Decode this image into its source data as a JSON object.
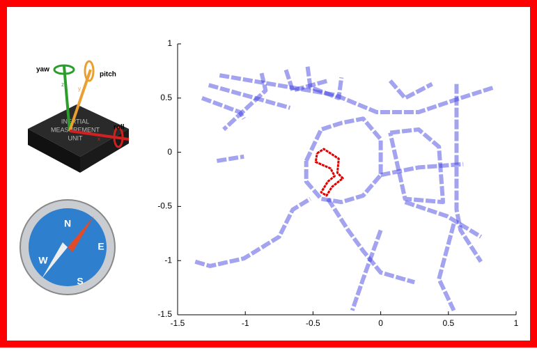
{
  "imu_icon": {
    "yaw": "yaw",
    "pitch": "pitch",
    "roll": "roll",
    "x": "x",
    "y": "y",
    "z": "z",
    "chip_lines": [
      "INERTIAL",
      "MEASUREMENT",
      "UNIT"
    ]
  },
  "compass_icon": {
    "n": "N",
    "e": "E",
    "s": "S",
    "w": "W"
  },
  "chart_data": {
    "type": "line",
    "xlim": [
      -1.5,
      1
    ],
    "ylim": [
      -1.5,
      1
    ],
    "xticks": [
      -1.5,
      -1,
      -0.5,
      0,
      0.5,
      1
    ],
    "yticks": [
      -1.5,
      -1,
      -0.5,
      0,
      0.5,
      1
    ],
    "series": [
      {
        "color": "#3333dd",
        "x": [
          -1.19,
          -0.34,
          -0.03,
          0.28,
          0.59,
          0.84
        ],
        "y": [
          0.71,
          0.53,
          0.37,
          0.37,
          0.5,
          0.6
        ]
      },
      {
        "color": "#3333dd",
        "x": [
          -1.32,
          -1.04,
          -1.01
        ],
        "y": [
          0.5,
          0.37,
          0.31
        ]
      },
      {
        "color": "#3333dd",
        "x": [
          -1.27,
          -0.67
        ],
        "y": [
          0.62,
          0.41
        ]
      },
      {
        "color": "#3333dd",
        "x": [
          -0.88,
          -0.85,
          -1.16
        ],
        "y": [
          0.73,
          0.57,
          0.21
        ]
      },
      {
        "color": "#3333dd",
        "x": [
          -0.55,
          -0.44,
          -0.29,
          -0.13,
          0,
          0,
          -0.13,
          -0.29,
          -0.44,
          -0.55,
          -0.55
        ],
        "y": [
          -0.08,
          0.21,
          0.27,
          0.31,
          0.12,
          -0.21,
          -0.4,
          -0.46,
          -0.43,
          -0.27,
          -0.08
        ]
      },
      {
        "color": "#3333dd",
        "x": [
          -1.37,
          -1.26,
          -1.01,
          -0.75,
          -0.65,
          -0.52
        ],
        "y": [
          -1.01,
          -1.05,
          -0.98,
          -0.78,
          -0.53,
          -0.43
        ]
      },
      {
        "color": "#3333dd",
        "x": [
          -0.39,
          -0.24,
          -0.13,
          0,
          0.25
        ],
        "y": [
          -0.43,
          -0.72,
          -0.91,
          -1.11,
          -1.2
        ]
      },
      {
        "color": "#3333dd",
        "x": [
          0,
          0.28,
          0.61
        ],
        "y": [
          -0.21,
          -0.14,
          -0.11
        ]
      },
      {
        "color": "#3333dd",
        "x": [
          0.07,
          0.28,
          0.43,
          0.46,
          0.18,
          0.07
        ],
        "y": [
          0.18,
          0.21,
          0.05,
          -0.46,
          -0.43,
          0.18
        ]
      },
      {
        "color": "#3333dd",
        "x": [
          0.56,
          0.56,
          0.56,
          0.59,
          0.74
        ],
        "y": [
          0.63,
          -0.08,
          -0.53,
          -0.72,
          -1.01
        ]
      },
      {
        "color": "#3333dd",
        "x": [
          0.18,
          0.49,
          0.74
        ],
        "y": [
          -0.46,
          -0.59,
          -0.78
        ]
      },
      {
        "color": "#3333dd",
        "x": [
          0,
          -0.13,
          -0.21
        ],
        "y": [
          -0.72,
          -1.17,
          -1.46
        ]
      },
      {
        "color": "#3333dd",
        "x": [
          0.54,
          0.43,
          0.54
        ],
        "y": [
          -0.66,
          -1.17,
          -1.46
        ]
      },
      {
        "color": "#3333dd",
        "x": [
          -0.54,
          -0.52,
          -0.31,
          -0.29
        ],
        "y": [
          0.79,
          0.6,
          0.5,
          0.69
        ]
      },
      {
        "color": "#3333dd",
        "x": [
          0.07,
          0.18,
          0.38
        ],
        "y": [
          0.66,
          0.5,
          0.63
        ]
      },
      {
        "color": "#3333dd",
        "x": [
          -1.21,
          -1.01
        ],
        "y": [
          -0.08,
          -0.04
        ]
      },
      {
        "color": "#3333dd",
        "x": [
          -0.7,
          -0.65,
          -0.39
        ],
        "y": [
          0.76,
          0.57,
          0.66
        ]
      },
      {
        "color": "#e00000",
        "x": [
          -0.47,
          -0.42,
          -0.31,
          -0.32,
          -0.28,
          -0.36,
          -0.4,
          -0.44,
          -0.39,
          -0.34,
          -0.37,
          -0.48,
          -0.47
        ],
        "y": [
          -0.01,
          0.03,
          -0.06,
          -0.19,
          -0.24,
          -0.32,
          -0.4,
          -0.37,
          -0.27,
          -0.22,
          -0.15,
          -0.09,
          -0.01
        ]
      }
    ]
  }
}
